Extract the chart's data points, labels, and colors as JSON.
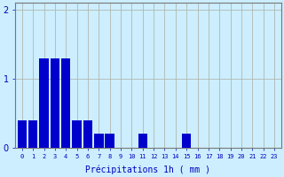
{
  "categories": [
    0,
    1,
    2,
    3,
    4,
    5,
    6,
    7,
    8,
    9,
    10,
    11,
    12,
    13,
    14,
    15,
    16,
    17,
    18,
    19,
    20,
    21,
    22,
    23
  ],
  "values": [
    0.4,
    0.4,
    1.3,
    1.3,
    1.3,
    0.4,
    0.4,
    0.2,
    0.2,
    0.0,
    0.0,
    0.2,
    0.0,
    0.0,
    0.0,
    0.2,
    0.0,
    0.0,
    0.0,
    0.0,
    0.0,
    0.0,
    0.0,
    0.0
  ],
  "bar_color": "#0000cc",
  "background_color": "#cceeff",
  "grid_color": "#b0b8b0",
  "xlabel": "Précipitations 1h ( mm )",
  "ylim": [
    0,
    2.1
  ],
  "yticks": [
    0,
    1,
    2
  ],
  "tick_color": "#0000bb",
  "bar_width": 0.85
}
